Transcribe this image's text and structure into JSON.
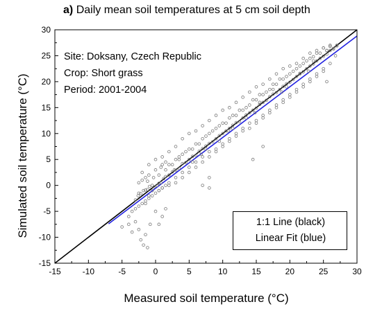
{
  "chart_data": {
    "type": "scatter",
    "title_prefix": "a)",
    "title": "Daily mean soil temperatures at 5 cm soil depth",
    "xlabel": "Measured soil temperature (°C)",
    "ylabel": "Simulated soil temperature (°C)",
    "xlim": [
      -15,
      30
    ],
    "ylim": [
      -15,
      30
    ],
    "xticks": [
      -15,
      -10,
      -5,
      0,
      5,
      10,
      15,
      20,
      25,
      30
    ],
    "yticks": [
      -15,
      -10,
      -5,
      0,
      5,
      10,
      15,
      20,
      25,
      30
    ],
    "grid": false,
    "annotations": [
      "Site: Doksany, Czech Republic",
      "Crop: Short grass",
      "Period: 2001-2004"
    ],
    "legend": {
      "placement": "bottom-right",
      "entries": [
        "1:1 Line (black)",
        "Linear Fit (blue)"
      ]
    },
    "series": [
      {
        "kind": "points",
        "x": [
          -3.0,
          -2.6,
          -2.2,
          -1.8,
          -1.5,
          -1.2,
          -0.9,
          -0.5,
          -0.2,
          0.2,
          0.5,
          0.8,
          1.2,
          1.5,
          2.0,
          2.5,
          3.0,
          3.5,
          4.0,
          4.5,
          5.0,
          5.5,
          6.0,
          6.5,
          7.0,
          7.5,
          8.0,
          8.5,
          9.0,
          9.5,
          10.0,
          10.5,
          11.0,
          11.5,
          12.0,
          12.5,
          13.0,
          13.5,
          14.0,
          14.5,
          15.0,
          15.5,
          16.0,
          16.5,
          17.0,
          17.5,
          18.0,
          18.5,
          19.0,
          19.5,
          20.0,
          20.5,
          21.0,
          21.5,
          22.0,
          22.5,
          23.0,
          23.5,
          24.0,
          24.5,
          25.0,
          25.5,
          26.0,
          26.5,
          27.0,
          -2.0,
          -1.0,
          0.0,
          1.0,
          2.0,
          3.0,
          4.0,
          5.0,
          6.0,
          7.0,
          8.0,
          9.0,
          10.0,
          11.0,
          12.0,
          13.0,
          14.0,
          15.0,
          16.0,
          17.0,
          18.0,
          19.0,
          20.0,
          21.0,
          22.0,
          23.0,
          24.0,
          25.0,
          26.0,
          -4.0,
          -3.5,
          -3.0,
          -2.5,
          -2.0,
          -1.5,
          -1.0,
          -0.5,
          0.0,
          0.5,
          1.0,
          1.5,
          2.0,
          3.0,
          4.0,
          5.0,
          6.0,
          7.0,
          8.0,
          9.0,
          10.0,
          11.0,
          12.0,
          13.0,
          14.0,
          15.0,
          16.0,
          17.0,
          18.0,
          19.0,
          20.0,
          21.0,
          22.0,
          23.0,
          24.0,
          25.0,
          -2.5,
          -1.2,
          -0.3,
          0.5,
          1.5,
          2.5,
          3.5,
          4.5,
          5.5,
          6.5,
          7.5,
          8.5,
          9.5,
          10.5,
          11.5,
          12.5,
          13.5,
          14.5,
          15.5,
          16.5,
          17.5,
          18.5,
          19.5,
          20.5,
          21.5,
          22.5,
          23.5,
          24.5,
          25.5,
          26.5,
          -1.5,
          -1.0,
          -0.5,
          0.5,
          1.0,
          2.0,
          3.0,
          4.0,
          5.0,
          6.0,
          7.0,
          8.0,
          9.0,
          10.0,
          11.0,
          12.0,
          13.0,
          14.0,
          15.0,
          16.0,
          17.0,
          18.0,
          19.0,
          20.0,
          21.0,
          22.0,
          23.0,
          24.0,
          25.0,
          26.0,
          -2.5,
          -2.0,
          -1.5,
          -1.0,
          0.0,
          1.0,
          2.0,
          3.0,
          4.0,
          5.0,
          6.0,
          7.0,
          8.0,
          9.0,
          10.0,
          11.0,
          12.0,
          13.0,
          14.0,
          15.0,
          16.0,
          17.0,
          18.0,
          19.0,
          20.0,
          21.0,
          22.0,
          23.0,
          24.0,
          25.0,
          26.0,
          27.0,
          -5.0,
          -4.0,
          -3.5,
          -3.0,
          -2.5,
          -2.2,
          -1.8,
          -1.5,
          -1.2,
          -0.8,
          0.0,
          0.5,
          1.0,
          1.5,
          7.0,
          8.0,
          8.0,
          14.5,
          16.0,
          25.5,
          0.8,
          1.5,
          3.5,
          5.5,
          7.5,
          9.5,
          11.5,
          13.5,
          15.5,
          17.5,
          19.5,
          21.5,
          23.5,
          25.5,
          2.8,
          6.8,
          10.8,
          14.8,
          18.8,
          22.8,
          26.8
        ],
        "y": [
          -2.8,
          -2.0,
          -1.6,
          -1.0,
          -0.9,
          -0.8,
          -0.2,
          0.0,
          -0.3,
          0.0,
          0.4,
          0.5,
          1.3,
          1.7,
          2.0,
          2.6,
          2.9,
          3.3,
          4.2,
          4.4,
          5.0,
          5.6,
          5.8,
          6.6,
          7.1,
          7.6,
          8.1,
          8.4,
          9.0,
          9.6,
          10.0,
          10.5,
          11.0,
          11.6,
          12.1,
          12.3,
          13.0,
          13.6,
          14.0,
          14.5,
          14.9,
          15.6,
          16.0,
          16.4,
          17.1,
          17.6,
          17.9,
          18.5,
          19.1,
          19.6,
          19.9,
          20.4,
          21.0,
          21.6,
          21.9,
          22.5,
          23.0,
          23.4,
          24.0,
          24.5,
          24.9,
          25.3,
          26.0,
          26.4,
          26.9,
          2.5,
          4.0,
          5.0,
          5.5,
          6.5,
          7.5,
          9.0,
          10.0,
          10.5,
          11.5,
          12.5,
          13.5,
          14.5,
          15.0,
          16.0,
          17.0,
          18.0,
          19.0,
          19.5,
          20.5,
          21.5,
          22.5,
          23.0,
          23.5,
          24.5,
          25.5,
          26.0,
          26.5,
          26.8,
          -6.0,
          -5.0,
          -4.5,
          -4.0,
          -3.5,
          -3.0,
          -2.5,
          -2.0,
          -1.5,
          -1.0,
          -0.5,
          0.0,
          0.0,
          0.5,
          1.5,
          2.5,
          3.5,
          4.5,
          5.5,
          6.5,
          7.5,
          8.5,
          9.5,
          10.5,
          11.0,
          12.0,
          13.0,
          14.0,
          15.0,
          16.0,
          17.0,
          18.0,
          19.0,
          20.0,
          21.0,
          22.0,
          -1.5,
          0.8,
          1.5,
          2.0,
          3.0,
          4.0,
          5.5,
          6.5,
          7.0,
          8.0,
          9.5,
          10.5,
          11.5,
          12.0,
          13.5,
          14.5,
          15.0,
          16.5,
          17.5,
          18.0,
          19.5,
          20.5,
          21.0,
          22.0,
          23.0,
          24.0,
          24.8,
          25.5,
          26.0,
          26.3,
          -3.5,
          -2.0,
          -1.0,
          -1.0,
          -0.5,
          0.5,
          1.5,
          2.5,
          3.5,
          4.5,
          5.5,
          6.5,
          7.0,
          8.0,
          9.0,
          10.0,
          11.0,
          12.0,
          12.5,
          13.5,
          14.5,
          15.5,
          16.5,
          17.5,
          18.5,
          19.5,
          20.5,
          21.5,
          22.5,
          23.5,
          0.5,
          1.0,
          1.5,
          2.0,
          3.0,
          4.0,
          4.0,
          5.0,
          6.0,
          7.0,
          8.0,
          9.0,
          10.0,
          11.0,
          12.0,
          13.0,
          13.5,
          14.5,
          15.5,
          16.5,
          17.5,
          18.5,
          19.5,
          20.5,
          21.5,
          22.5,
          23.5,
          24.5,
          25.5,
          26.5,
          27.0,
          27.0,
          -8.0,
          -7.5,
          -9.0,
          -7.0,
          -8.5,
          -10.5,
          -11.5,
          -9.5,
          -12.0,
          -7.5,
          -5.0,
          -7.5,
          -6.0,
          -4.5,
          0.0,
          -0.5,
          1.5,
          5.0,
          7.5,
          20.0,
          3.5,
          4.5,
          5.0,
          4.5,
          7.0,
          8.5,
          11.0,
          13.0,
          16.0,
          18.5,
          19.0,
          21.5,
          24.0,
          26.0,
          3.0,
          6.0,
          10.5,
          14.0,
          18.0,
          22.0,
          25.0
        ]
      },
      {
        "name": "1:1 Line (black)",
        "kind": "line",
        "color": "#000000",
        "x": [
          -15,
          30
        ],
        "y": [
          -15,
          30
        ]
      },
      {
        "name": "Linear Fit (blue)",
        "kind": "line",
        "color": "#2020e0",
        "x": [
          -7,
          30
        ],
        "y": [
          -7.4,
          28.8
        ]
      }
    ]
  }
}
